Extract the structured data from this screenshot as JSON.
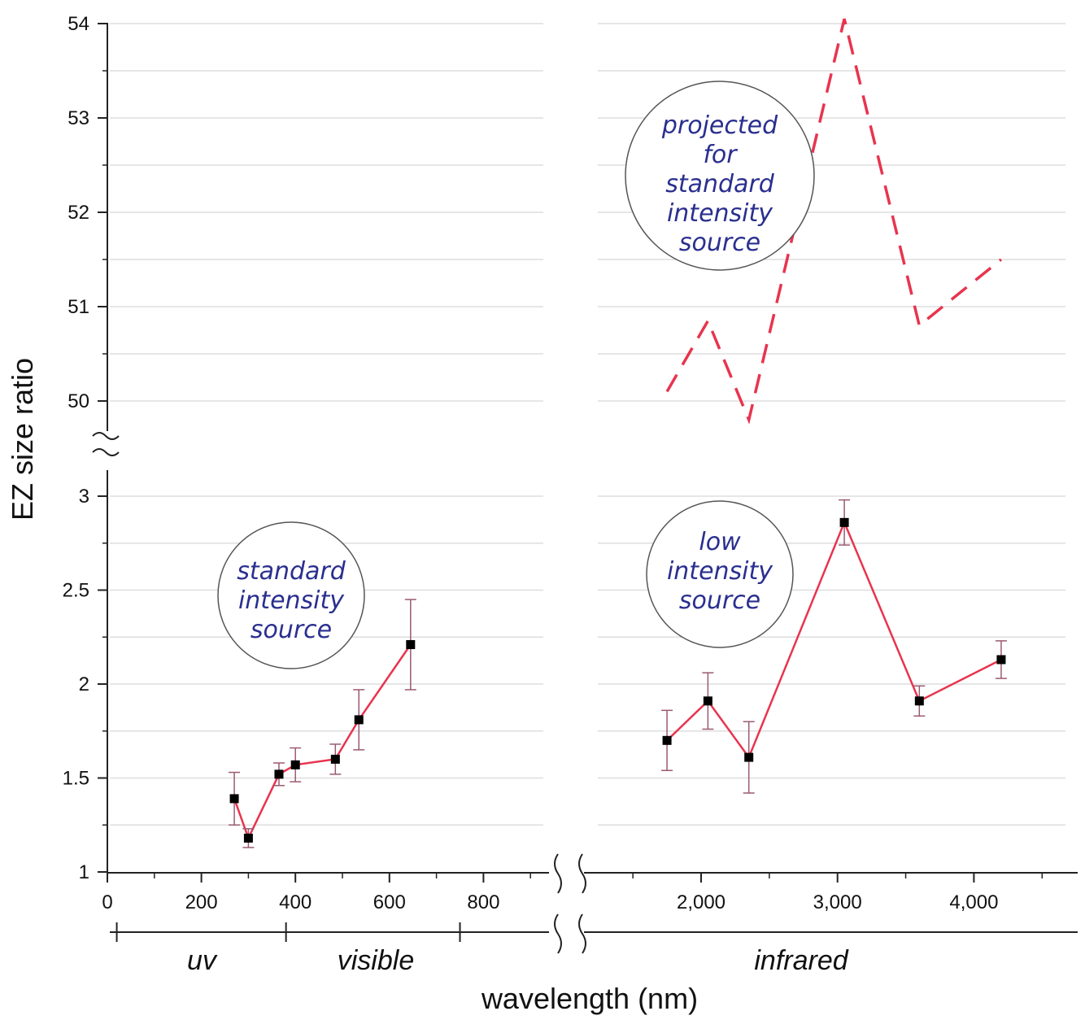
{
  "chart_data": {
    "type": "line",
    "xlabel": "wavelength (nm)",
    "ylabel": "EZ size ratio",
    "grid": true,
    "x_axis_break": [
      900,
      1500
    ],
    "y_axis_break": [
      3,
      50
    ],
    "x_ticks_left": [
      "0",
      "200",
      "400",
      "600",
      "800"
    ],
    "x_ticks_right": [
      "2,000",
      "3,000",
      "4,000"
    ],
    "y_ticks_lower": [
      "1",
      "1.5",
      "2",
      "2.5",
      "3"
    ],
    "y_ticks_upper": [
      "50",
      "51",
      "52",
      "53",
      "54"
    ],
    "regions": [
      {
        "label": "uv",
        "from": 20,
        "to": 380
      },
      {
        "label": "visible",
        "from": 380,
        "to": 750
      },
      {
        "label": "infrared",
        "from": 750,
        "to": 4700
      }
    ],
    "series": [
      {
        "name": "standard intensity source",
        "style": "solid",
        "color": "#e8344e",
        "points": [
          {
            "x": 270,
            "y": 1.39,
            "err": 0.14
          },
          {
            "x": 300,
            "y": 1.18,
            "err": 0.05
          },
          {
            "x": 365,
            "y": 1.52,
            "err": 0.06
          },
          {
            "x": 400,
            "y": 1.57,
            "err": 0.09
          },
          {
            "x": 485,
            "y": 1.6,
            "err": 0.08
          },
          {
            "x": 535,
            "y": 1.81,
            "err": 0.16
          },
          {
            "x": 645,
            "y": 2.21,
            "err": 0.24
          }
        ]
      },
      {
        "name": "low intensity source",
        "style": "solid",
        "color": "#e8344e",
        "points": [
          {
            "x": 1750,
            "y": 1.7,
            "err": 0.16
          },
          {
            "x": 2050,
            "y": 1.91,
            "err": 0.15
          },
          {
            "x": 2350,
            "y": 1.61,
            "err": 0.19
          },
          {
            "x": 3050,
            "y": 2.86,
            "err": 0.12
          },
          {
            "x": 3600,
            "y": 1.91,
            "err": 0.08
          },
          {
            "x": 4200,
            "y": 2.13,
            "err": 0.1
          }
        ]
      },
      {
        "name": "projected for standard intensity source",
        "style": "dashed",
        "color": "#e8344e",
        "points": [
          {
            "x": 1750,
            "y": 50.1
          },
          {
            "x": 2050,
            "y": 50.85
          },
          {
            "x": 2350,
            "y": 49.8
          },
          {
            "x": 3050,
            "y": 54.05
          },
          {
            "x": 3600,
            "y": 50.8
          },
          {
            "x": 4200,
            "y": 51.5
          }
        ]
      }
    ],
    "annotations": [
      {
        "name": "standard-intensity",
        "lines": [
          "standard",
          "intensity",
          "source"
        ]
      },
      {
        "name": "low-intensity",
        "lines": [
          "low",
          "intensity",
          "source"
        ]
      },
      {
        "name": "projected",
        "lines": [
          "projected",
          "for",
          "standard",
          "intensity",
          "source"
        ]
      }
    ]
  },
  "colors": {
    "series": "#e8344e",
    "error_bar": "#9a5a72",
    "bubble_text": "#2a2f8f",
    "grid": "#dedede",
    "axis": "#222222"
  }
}
